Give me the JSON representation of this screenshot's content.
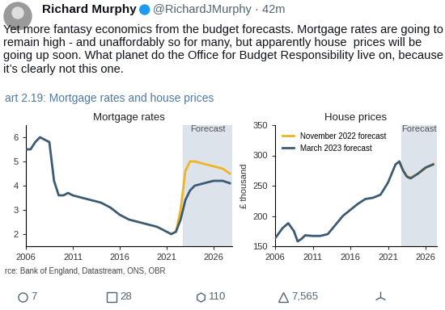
{
  "tweet": {
    "name": "Richard Murphy",
    "handle": "@RichardJMurphy · 42m",
    "text": "Yet more fantasy economics from the budget forecasts. Mortgage rates are going to remain high - and unaffordably so for many, but apparently house  prices will be going up soon. What planet do the Office for Budget Responsibility live on, because it’s clearly not this one.",
    "replies": "7",
    "retweets": "28",
    "likes": "110",
    "views": "7,565"
  },
  "figure_title": "art 2.19: Mortgage rates and house prices",
  "source": "rce: Bank of England, Datastream, ONS, OBR",
  "chart_data": [
    {
      "type": "line",
      "title": "Mortgage rates",
      "xlim": [
        2006,
        2028
      ],
      "xticks": [
        2006,
        2011,
        2016,
        2021,
        2026
      ],
      "ylim": [
        1.5,
        6.5
      ],
      "yticks": [
        2,
        3,
        4,
        5,
        6
      ],
      "forecast": {
        "from": 2022.75,
        "label": "Forecast"
      },
      "series": [
        {
          "color": "#f0b323",
          "x": [
            2022.0,
            2022.5,
            2023.0,
            2023.5,
            2024.0,
            2025.0,
            2026.0,
            2027.0,
            2027.75
          ],
          "values": [
            2.1,
            3.0,
            4.6,
            5.0,
            5.0,
            4.9,
            4.8,
            4.7,
            4.5
          ]
        },
        {
          "color": "#3d5a73",
          "x": [
            2006.0,
            2006.5,
            2007.0,
            2007.5,
            2008.0,
            2008.5,
            2009.0,
            2009.5,
            2010.0,
            2010.5,
            2011.0,
            2012.0,
            2013.0,
            2014.0,
            2015.0,
            2016.0,
            2017.0,
            2018.0,
            2019.0,
            2020.0,
            2021.0,
            2021.5,
            2022.0,
            2022.5,
            2023.0,
            2023.5,
            2024.0,
            2025.0,
            2026.0,
            2027.0,
            2027.75
          ],
          "values": [
            5.5,
            5.5,
            5.8,
            6.0,
            5.9,
            5.8,
            4.2,
            3.6,
            3.6,
            3.7,
            3.6,
            3.5,
            3.4,
            3.3,
            3.1,
            2.8,
            2.6,
            2.5,
            2.4,
            2.3,
            2.1,
            2.0,
            2.1,
            2.6,
            3.4,
            3.8,
            4.0,
            4.1,
            4.2,
            4.2,
            4.1
          ]
        }
      ]
    },
    {
      "type": "line",
      "title": "House prices",
      "y_label": "£ thousand",
      "xlim": [
        2006,
        2027.5
      ],
      "xticks": [
        2006,
        2011,
        2016,
        2021,
        2026
      ],
      "ylim": [
        150,
        350
      ],
      "yticks": [
        150,
        200,
        250,
        300,
        350
      ],
      "forecast": {
        "from": 2022.75,
        "label": "Forecast"
      },
      "legend": "upper left",
      "series": [
        {
          "name": "November 2022 forecast",
          "color": "#f0b323",
          "x": [
            2022.5,
            2023.0,
            2023.5,
            2024.0,
            2025.0,
            2026.0,
            2027.0
          ],
          "values": [
            290,
            276,
            266,
            263,
            270,
            279,
            286
          ]
        },
        {
          "name": "March 2023 forecast",
          "color": "#3d5a73",
          "x": [
            2006.0,
            2007.0,
            2007.75,
            2008.5,
            2009.0,
            2009.5,
            2010.0,
            2011.0,
            2012.0,
            2013.0,
            2014.0,
            2015.0,
            2016.0,
            2017.0,
            2018.0,
            2019.0,
            2020.0,
            2021.0,
            2022.0,
            2022.5,
            2023.0,
            2023.5,
            2024.0,
            2025.0,
            2026.0,
            2027.0
          ],
          "values": [
            163,
            180,
            188,
            175,
            158,
            162,
            168,
            167,
            167,
            170,
            185,
            200,
            210,
            220,
            228,
            230,
            235,
            255,
            285,
            290,
            275,
            265,
            262,
            270,
            280,
            285
          ]
        }
      ]
    }
  ]
}
